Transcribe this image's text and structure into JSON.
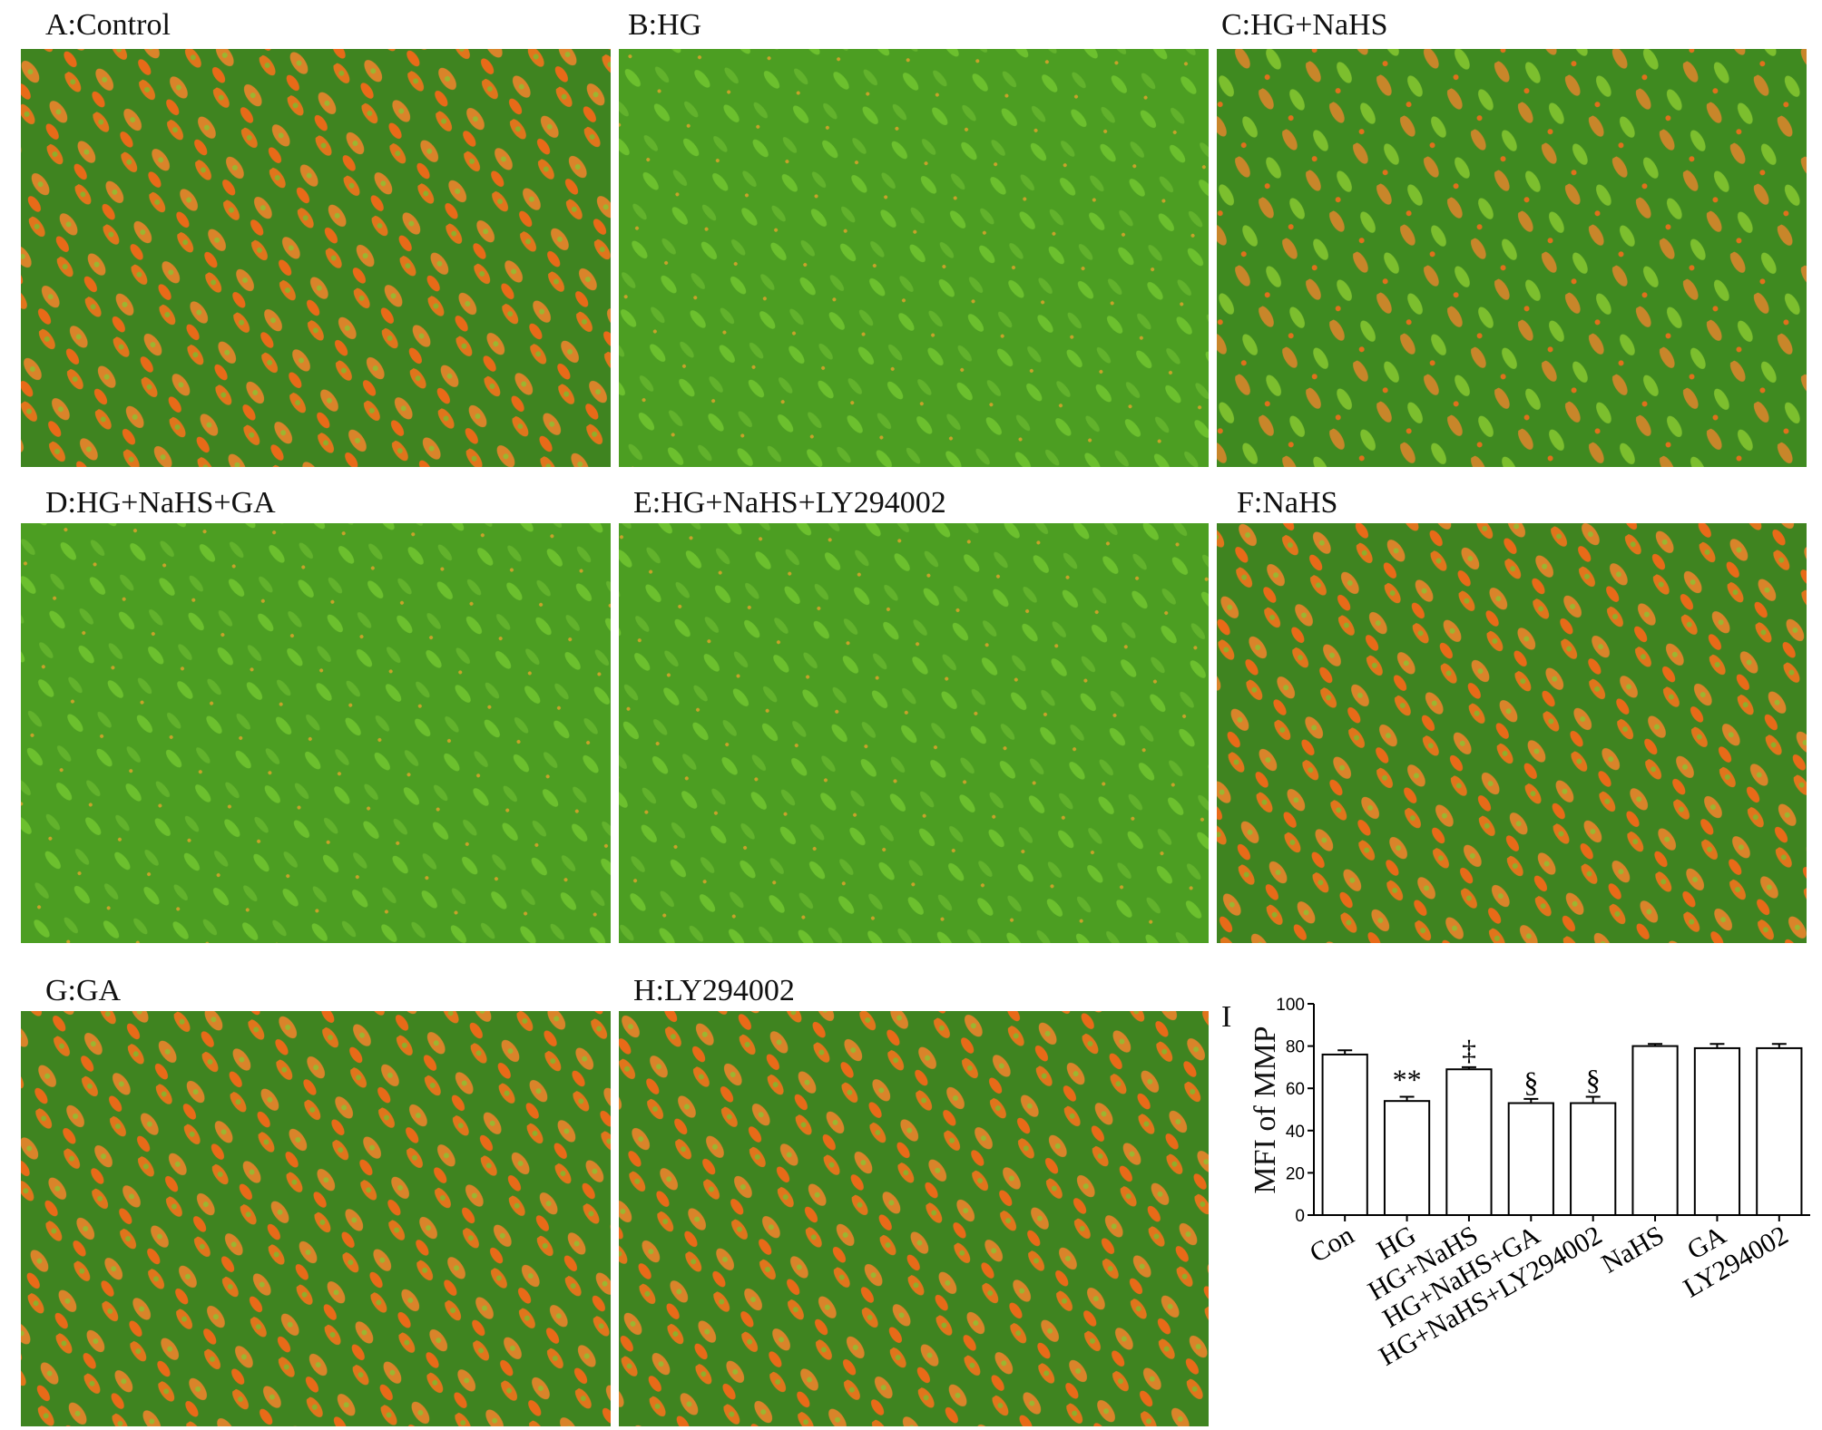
{
  "panels": [
    {
      "label": "A:Control"
    },
    {
      "label": "B:HG"
    },
    {
      "label": "C:HG+NaHS"
    },
    {
      "label": "D:HG+NaHS+GA"
    },
    {
      "label": "E:HG+NaHS+LY294002"
    },
    {
      "label": "F:NaHS"
    },
    {
      "label": "G:GA"
    },
    {
      "label": "H:LY294002"
    }
  ],
  "chart_data": {
    "type": "bar",
    "panel_label": "I",
    "y_label": "MFI of MMP",
    "categories": [
      "Con",
      "HG",
      "HG+NaHS",
      "HG+NaHS+GA",
      "HG+NaHS+LY294002",
      "NaHS",
      "GA",
      "LY294002"
    ],
    "values": [
      76,
      54,
      69,
      53,
      53,
      80,
      79,
      79
    ],
    "errors": [
      2,
      2,
      1,
      2,
      3,
      1,
      2,
      2
    ],
    "annotations": [
      null,
      "**",
      "‡",
      "§",
      "§",
      null,
      null,
      null
    ],
    "color": "#ffffff",
    "edgecolor": "#000000",
    "ylim": [
      0,
      100
    ],
    "yticks": [
      0,
      20,
      40,
      60,
      80,
      100
    ]
  }
}
